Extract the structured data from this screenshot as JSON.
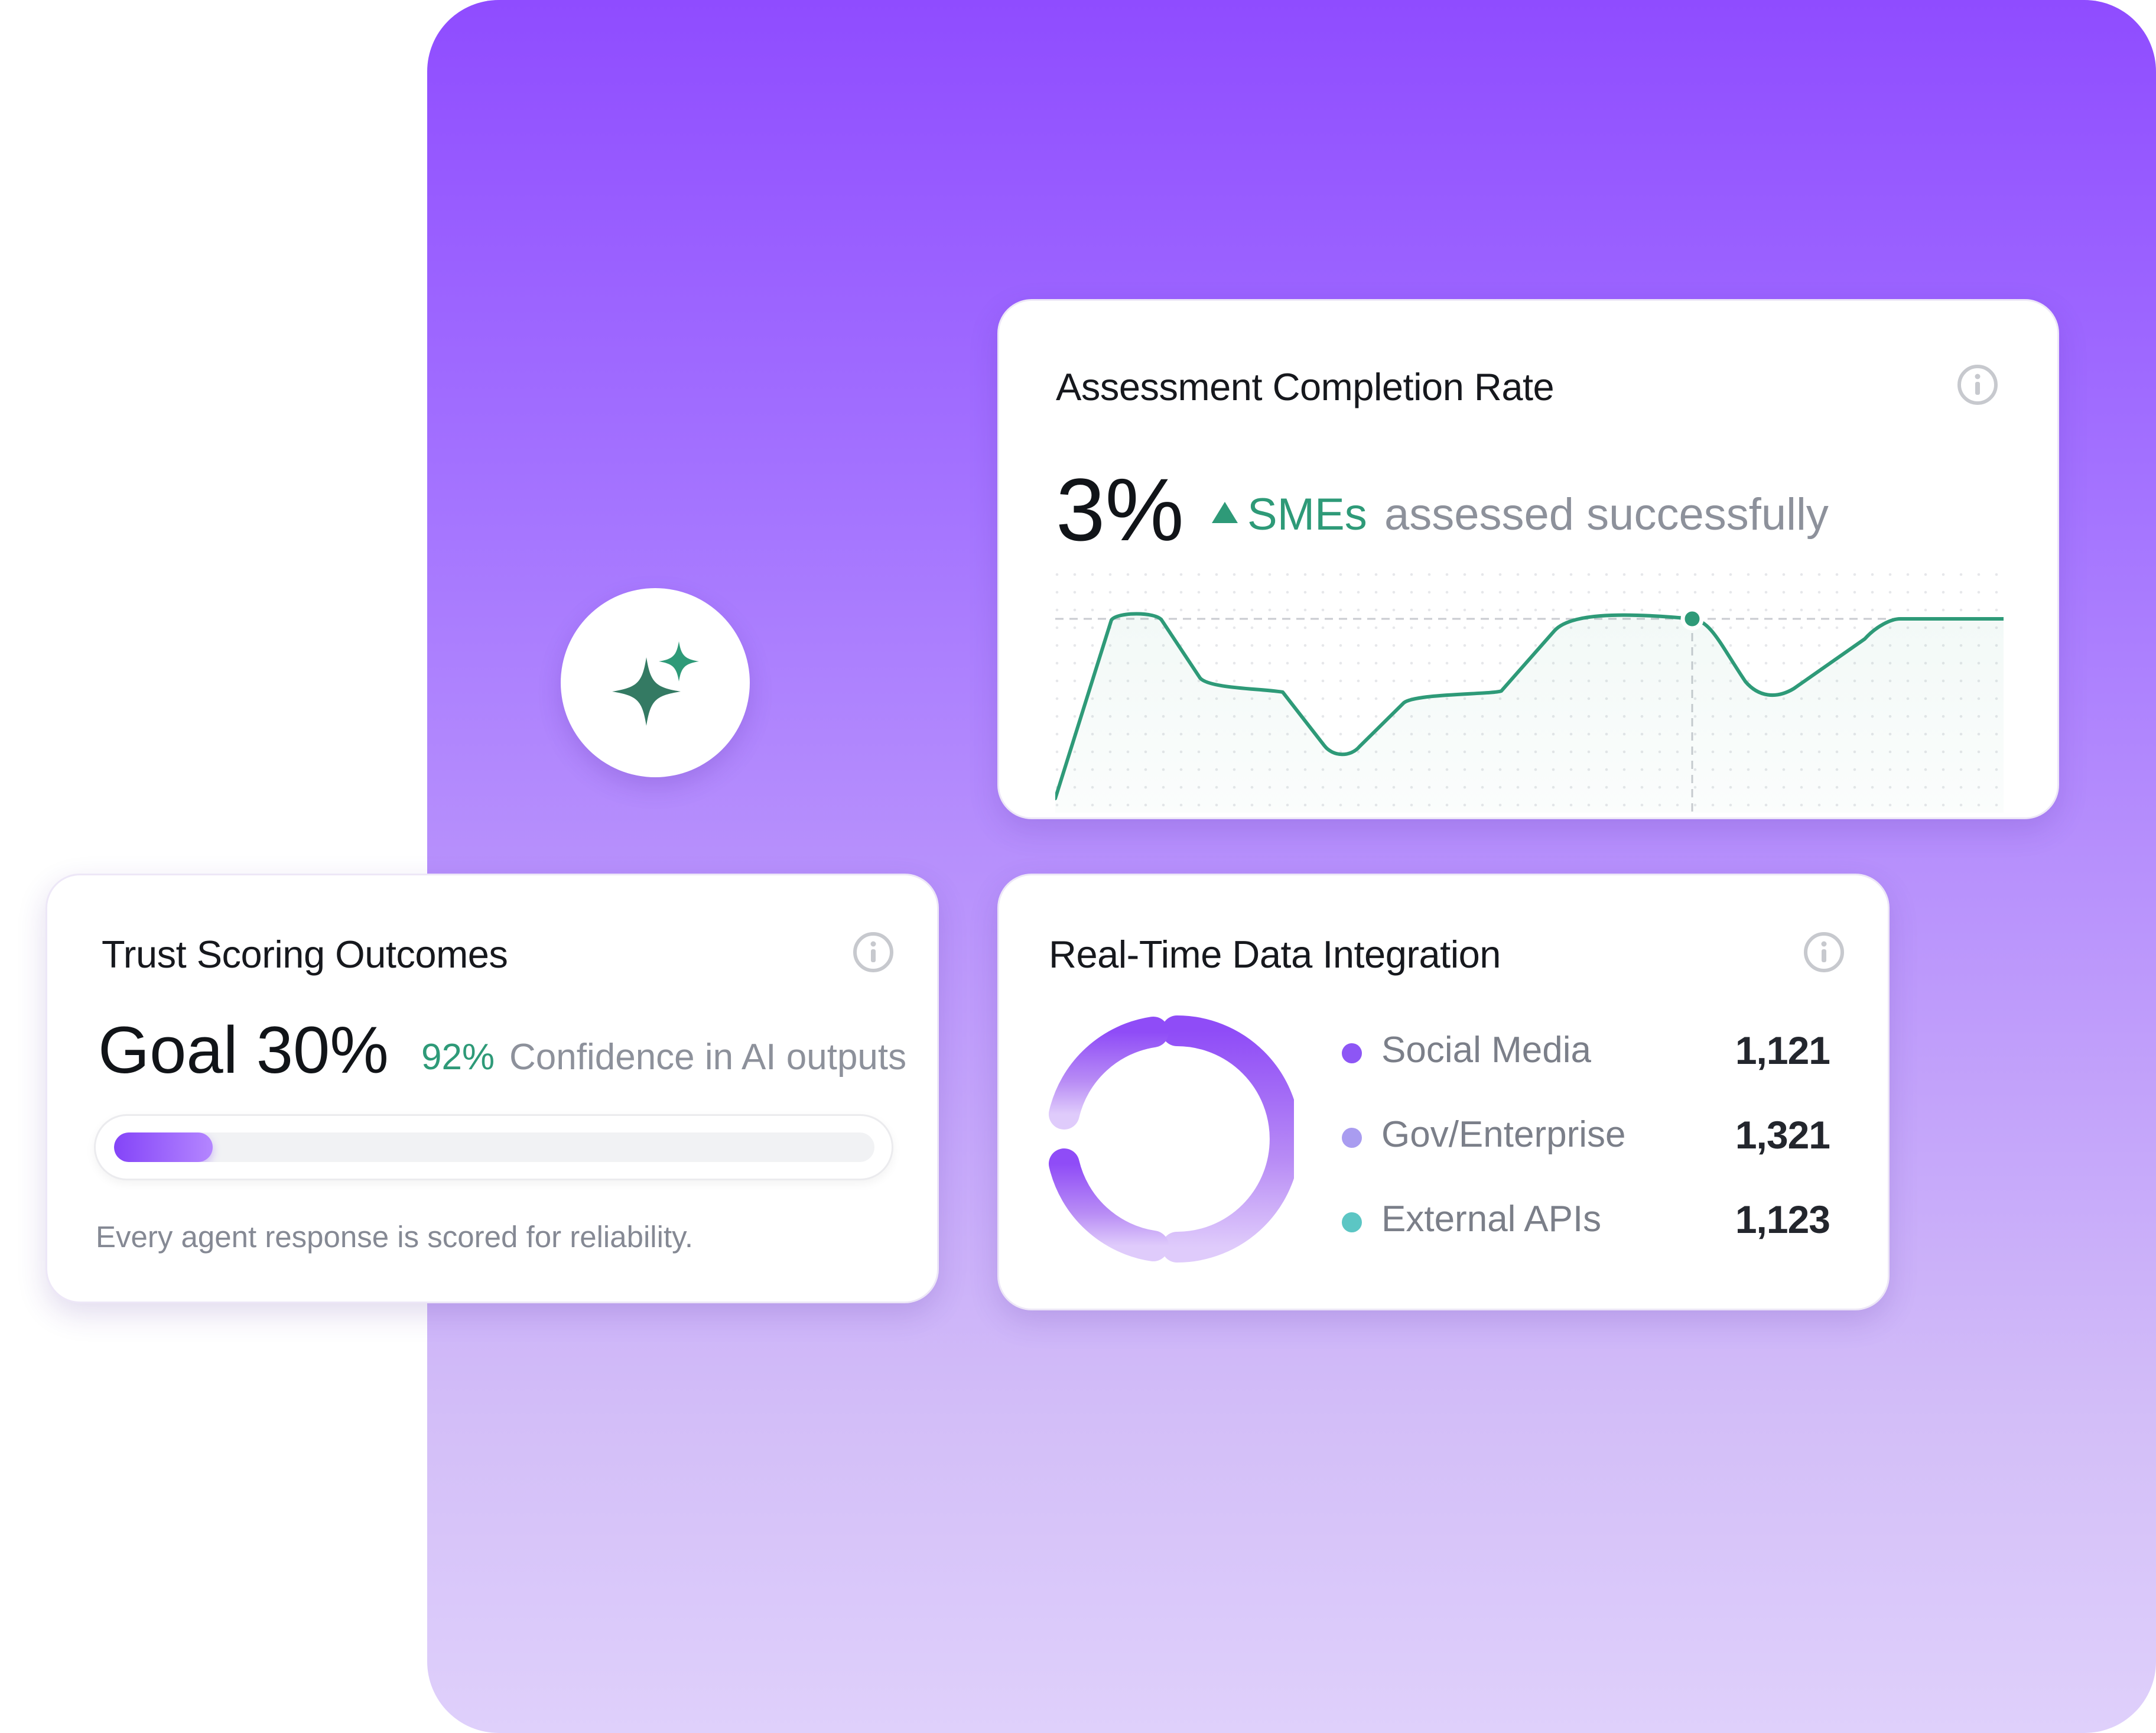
{
  "assessment_card": {
    "title": "Assessment Completion Rate",
    "metric": "3%",
    "trend_label": "SMEs",
    "subtitle": "assessed successfully",
    "line_color": "#2e9a78"
  },
  "trust_card": {
    "title": "Trust Scoring Outcomes",
    "goal": "Goal 30%",
    "confidence_value": "92%",
    "confidence_label": "Confidence in AI outputs",
    "progress_fraction": 0.13,
    "footnote": "Every agent response is scored for reliability."
  },
  "integration_card": {
    "title": "Real-Time Data Integration",
    "legend": [
      {
        "label": "Social Media",
        "value": "1,121",
        "color": "#8d56f5"
      },
      {
        "label": "Gov/Enterprise",
        "value": "1,321",
        "color": "#a99cf0"
      },
      {
        "label": "External APIs",
        "value": "1,123",
        "color": "#5cc6c4"
      }
    ]
  },
  "colors": {
    "accent_purple": "#8f4cff",
    "accent_green": "#2e9a78"
  },
  "icons": {
    "info": "info-icon",
    "sparkle": "sparkle-icon",
    "trend": "triangle-up-icon"
  }
}
